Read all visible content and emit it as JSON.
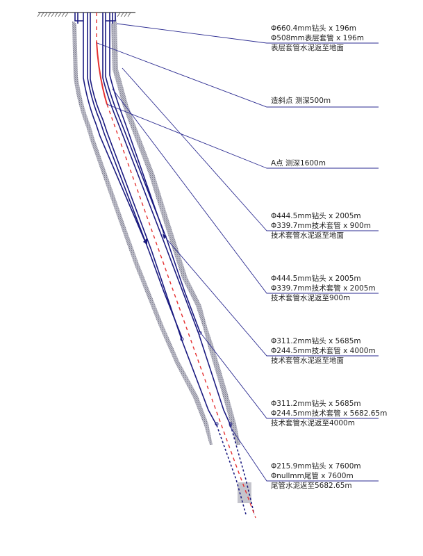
{
  "annotations": [
    {
      "id": "surface",
      "lines": [
        "Φ660.4mm钻头 x 196m",
        "Φ508mm表层套管 x 196m",
        "表层套管水泥返至地面"
      ]
    },
    {
      "id": "kickoff",
      "lines": [
        "造斜点 测深500m"
      ]
    },
    {
      "id": "point-a",
      "lines": [
        "A点 测深1600m"
      ]
    },
    {
      "id": "tech1",
      "lines": [
        "Φ444.5mm钻头 x 2005m",
        "Φ339.7mm技术套管 x 900m",
        "技术套管水泥返至地面"
      ]
    },
    {
      "id": "tech2",
      "lines": [
        "Φ444.5mm钻头 x 2005m",
        "Φ339.7mm技术套管 x 2005m",
        "技术套管水泥返至900m"
      ]
    },
    {
      "id": "tech3",
      "lines": [
        "Φ311.2mm钻头 x 5685m",
        "Φ244.5mm技术套管 x 4000m",
        "技术套管水泥返至地面"
      ]
    },
    {
      "id": "tech4",
      "lines": [
        "Φ311.2mm钻头 x 5685m",
        "Φ244.5mm技术套管 x 5682.65m",
        "技术套管水泥返至4000m"
      ]
    },
    {
      "id": "liner",
      "lines": [
        "Φ215.9mm钻头 x 7600m",
        "Φnullmm尾管 x 7600m",
        "尾管水泥返至5682.65m"
      ]
    }
  ],
  "colors": {
    "casing": "#1a1a80",
    "leader": "#2a2a90",
    "cement": "#a7a7b5",
    "centerline": "#e53030",
    "ground": "#333333"
  }
}
